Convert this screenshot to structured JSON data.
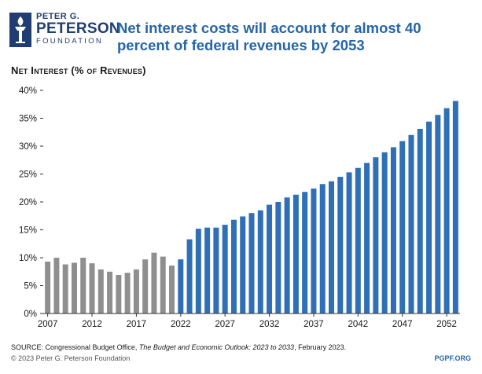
{
  "logo": {
    "line1": "PETER G.",
    "line2": "PETERSON",
    "line3": "FOUNDATION",
    "icon": "torch-logo-icon",
    "color": "#1f3d70"
  },
  "headline": "Net interest costs will account for almost 40 percent of federal revenues by 2053",
  "footer": {
    "source_prefix": "SOURCE: Congressional Budget Office, ",
    "source_title": "The Budget and Economic Outlook: 2023 to 2033",
    "source_suffix": ", February 2023.",
    "copyright": "© 2023 Peter G. Peterson Foundation",
    "site": "PGPF.ORG"
  },
  "colors": {
    "historical": "#8f8f8f",
    "projected": "#2f6fb6",
    "headline": "#2565a8",
    "axis": "#333333"
  },
  "chart_data": {
    "type": "bar",
    "title": "Net Interest (% of Revenues)",
    "xlabel": "",
    "ylabel": "",
    "ylim": [
      0,
      40
    ],
    "y_ticks": [
      "0%",
      "5%",
      "10%",
      "15%",
      "20%",
      "25%",
      "30%",
      "35%",
      "40%"
    ],
    "x_tick_labels": [
      "2007",
      "2012",
      "2017",
      "2022",
      "2027",
      "2032",
      "2037",
      "2042",
      "2047",
      "2052"
    ],
    "grid": false,
    "legend": "none",
    "categories": [
      2007,
      2008,
      2009,
      2010,
      2011,
      2012,
      2013,
      2014,
      2015,
      2016,
      2017,
      2018,
      2019,
      2020,
      2021,
      2022,
      2023,
      2024,
      2025,
      2026,
      2027,
      2028,
      2029,
      2030,
      2031,
      2032,
      2033,
      2034,
      2035,
      2036,
      2037,
      2038,
      2039,
      2040,
      2041,
      2042,
      2043,
      2044,
      2045,
      2046,
      2047,
      2048,
      2049,
      2050,
      2051,
      2052,
      2053
    ],
    "values": [
      9.3,
      10.0,
      8.8,
      9.1,
      10.0,
      9.0,
      7.9,
      7.5,
      6.9,
      7.3,
      7.9,
      9.7,
      10.9,
      10.2,
      8.6,
      9.7,
      13.3,
      15.2,
      15.4,
      15.4,
      15.9,
      16.8,
      17.4,
      18.0,
      18.5,
      19.5,
      20.0,
      20.8,
      21.3,
      21.8,
      22.4,
      23.2,
      23.7,
      24.5,
      25.3,
      26.1,
      27.0,
      28.0,
      28.9,
      29.8,
      30.9,
      32.0,
      33.1,
      34.4,
      35.6,
      36.8,
      38.1
    ],
    "historical_through": 2021
  }
}
